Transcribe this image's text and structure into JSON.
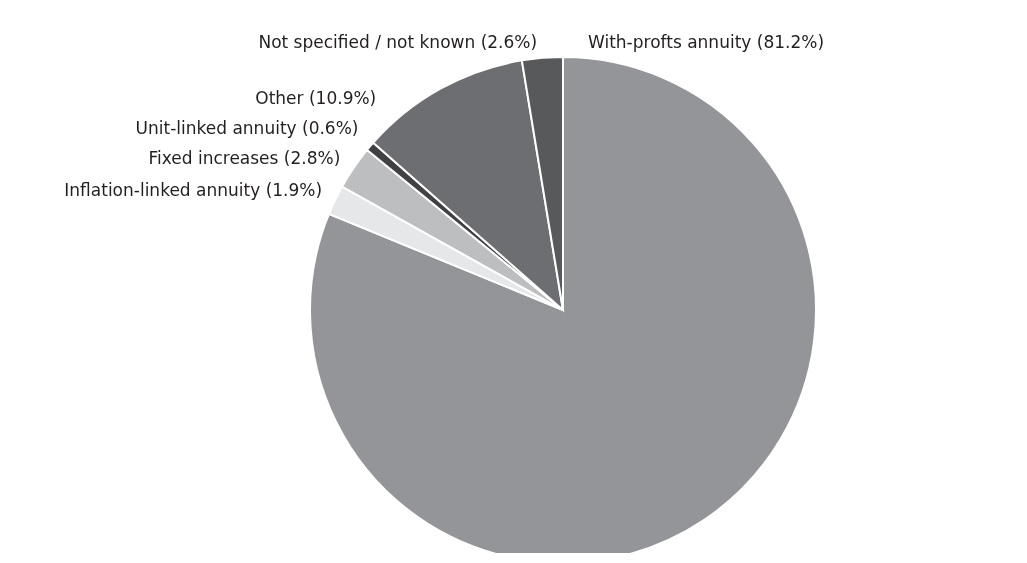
{
  "chart_data": {
    "type": "pie",
    "categories": [
      "With-profts annuity (81.2%)",
      "Inflation-linked annuity (1.9%)",
      "Fixed increases (2.8%)",
      "Unit-linked annuity (0.6%)",
      "Other (10.9%)",
      "Not specified / not known (2.6%)"
    ],
    "values": [
      81.2,
      1.9,
      2.8,
      0.6,
      10.9,
      2.6
    ],
    "colors": [
      "#939598",
      "#e6e7e8",
      "#bcbec0",
      "#414042",
      "#6d6e71",
      "#58595b"
    ],
    "legend": false
  }
}
